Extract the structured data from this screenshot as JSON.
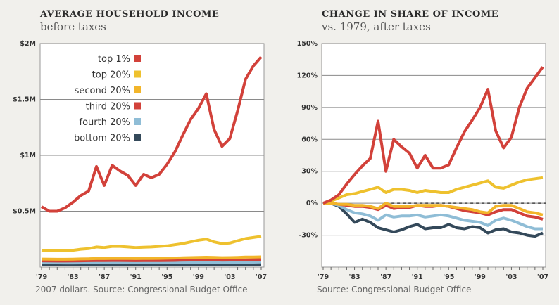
{
  "chart_data": [
    {
      "type": "line",
      "title": "AVERAGE HOUSEHOLD INCOME",
      "subtitle": "before taxes",
      "note": "2007 dollars. Source: Congressional Budget Office",
      "ylim": [
        0,
        2000000
      ],
      "yticks": [
        {
          "v": 500000,
          "label": "$0.5M"
        },
        {
          "v": 1000000,
          "label": "$1M"
        },
        {
          "v": 1500000,
          "label": "$1.5M"
        },
        {
          "v": 2000000,
          "label": "$2M"
        }
      ],
      "xticks": [
        "'79",
        "'83",
        "'87",
        "'91",
        "'95",
        "'99",
        "'03",
        "'07"
      ],
      "x_start": 1979,
      "x_end": 2007,
      "grid": true,
      "legend_position": "top-left",
      "series": [
        {
          "name": "top 1%",
          "color": "#d2413a",
          "values": [
            540000,
            500000,
            500000,
            530000,
            580000,
            640000,
            680000,
            900000,
            730000,
            910000,
            860000,
            820000,
            730000,
            830000,
            800000,
            830000,
            920000,
            1030000,
            1180000,
            1320000,
            1420000,
            1550000,
            1230000,
            1080000,
            1150000,
            1400000,
            1680000,
            1800000,
            1880000
          ]
        },
        {
          "name": "top 20%",
          "color": "#eec12e",
          "values": [
            150000,
            145000,
            145000,
            145000,
            150000,
            160000,
            165000,
            180000,
            175000,
            185000,
            185000,
            180000,
            175000,
            178000,
            180000,
            185000,
            190000,
            200000,
            210000,
            225000,
            240000,
            250000,
            225000,
            210000,
            215000,
            235000,
            255000,
            265000,
            275000
          ]
        },
        {
          "name": "second 20%",
          "color": "#f2b52a",
          "values": [
            72000,
            71000,
            70000,
            70000,
            71000,
            73000,
            74000,
            76000,
            76000,
            77000,
            78000,
            77000,
            76000,
            77000,
            77000,
            78000,
            79000,
            81000,
            83000,
            85000,
            87000,
            88000,
            86000,
            84000,
            85000,
            87000,
            89000,
            90000,
            91000
          ]
        },
        {
          "name": "third 20%",
          "color": "#d2413a",
          "values": [
            56000,
            55000,
            54000,
            54000,
            55000,
            56000,
            57000,
            58000,
            58000,
            59000,
            59000,
            58000,
            57000,
            58000,
            58000,
            58000,
            59000,
            60000,
            62000,
            63000,
            65000,
            66000,
            64000,
            62000,
            63000,
            64000,
            65000,
            66000,
            67000
          ]
        },
        {
          "name": "fourth 20%",
          "color": "#8fbdd6",
          "values": [
            40000,
            39000,
            38000,
            37000,
            37000,
            38000,
            38000,
            39000,
            39000,
            39000,
            40000,
            39000,
            38000,
            39000,
            39000,
            39000,
            40000,
            41000,
            42000,
            43000,
            44000,
            44000,
            43000,
            42000,
            42000,
            43000,
            44000,
            44000,
            45000
          ]
        },
        {
          "name": "bottom 20%",
          "color": "#34495a",
          "values": [
            24000,
            23000,
            22000,
            21000,
            21000,
            22000,
            22000,
            22000,
            22000,
            22000,
            22000,
            22000,
            22000,
            22000,
            22000,
            22000,
            23000,
            23000,
            24000,
            24000,
            25000,
            25000,
            24000,
            24000,
            24000,
            24000,
            24000,
            24000,
            25000
          ]
        }
      ]
    },
    {
      "type": "line",
      "title": "CHANGE IN SHARE OF INCOME",
      "subtitle": "vs. 1979, after taxes",
      "note": "Source: Congressional Budget Office",
      "ylim": [
        -60,
        150
      ],
      "yticks": [
        {
          "v": -30,
          "label": "-30%"
        },
        {
          "v": 0,
          "label": "0%"
        },
        {
          "v": 30,
          "label": "30%"
        },
        {
          "v": 60,
          "label": "60%"
        },
        {
          "v": 90,
          "label": "90%"
        },
        {
          "v": 120,
          "label": "120%"
        },
        {
          "v": 150,
          "label": "150%"
        }
      ],
      "xticks": [
        "'79",
        "'83",
        "'87",
        "'91",
        "'95",
        "'99",
        "'03",
        "'07"
      ],
      "x_start": 1979,
      "x_end": 2007,
      "grid": true,
      "zero_line": "dashed",
      "series": [
        {
          "name": "top 1%",
          "color": "#d2413a",
          "values": [
            0,
            3,
            8,
            18,
            27,
            35,
            42,
            77,
            30,
            60,
            53,
            47,
            33,
            45,
            33,
            33,
            36,
            52,
            67,
            78,
            90,
            107,
            68,
            52,
            62,
            90,
            108,
            118,
            128
          ]
        },
        {
          "name": "top 20%",
          "color": "#eec12e",
          "values": [
            0,
            2,
            5,
            8,
            9,
            11,
            13,
            15,
            10,
            13,
            13,
            12,
            10,
            12,
            11,
            10,
            10,
            13,
            15,
            17,
            19,
            21,
            15,
            14,
            17,
            20,
            22,
            23,
            24
          ]
        },
        {
          "name": "second 20%",
          "color": "#f2b52a",
          "values": [
            0,
            0,
            -1,
            -1,
            -2,
            -2,
            -3,
            -5,
            0,
            -3,
            -3,
            -3,
            -2,
            -2,
            -2,
            -2,
            -3,
            -4,
            -5,
            -6,
            -8,
            -9,
            -3,
            -2,
            -2,
            -5,
            -8,
            -9,
            -11
          ]
        },
        {
          "name": "third 20%",
          "color": "#d2413a",
          "values": [
            0,
            0,
            -1,
            -2,
            -3,
            -3,
            -4,
            -6,
            -2,
            -5,
            -4,
            -4,
            -2,
            -3,
            -3,
            -2,
            -3,
            -5,
            -7,
            -8,
            -9,
            -11,
            -8,
            -6,
            -6,
            -9,
            -12,
            -13,
            -15
          ]
        },
        {
          "name": "fourth 20%",
          "color": "#8fbdd6",
          "values": [
            0,
            0,
            -2,
            -6,
            -9,
            -10,
            -12,
            -16,
            -11,
            -13,
            -12,
            -12,
            -11,
            -13,
            -12,
            -11,
            -12,
            -14,
            -16,
            -17,
            -18,
            -21,
            -16,
            -14,
            -16,
            -19,
            -22,
            -24,
            -24
          ]
        },
        {
          "name": "bottom 20%",
          "color": "#34495a",
          "values": [
            0,
            0,
            -3,
            -10,
            -18,
            -15,
            -18,
            -23,
            -25,
            -27,
            -25,
            -22,
            -20,
            -24,
            -23,
            -23,
            -20,
            -23,
            -24,
            -22,
            -23,
            -28,
            -25,
            -24,
            -27,
            -28,
            -30,
            -31,
            -28
          ]
        }
      ]
    }
  ]
}
